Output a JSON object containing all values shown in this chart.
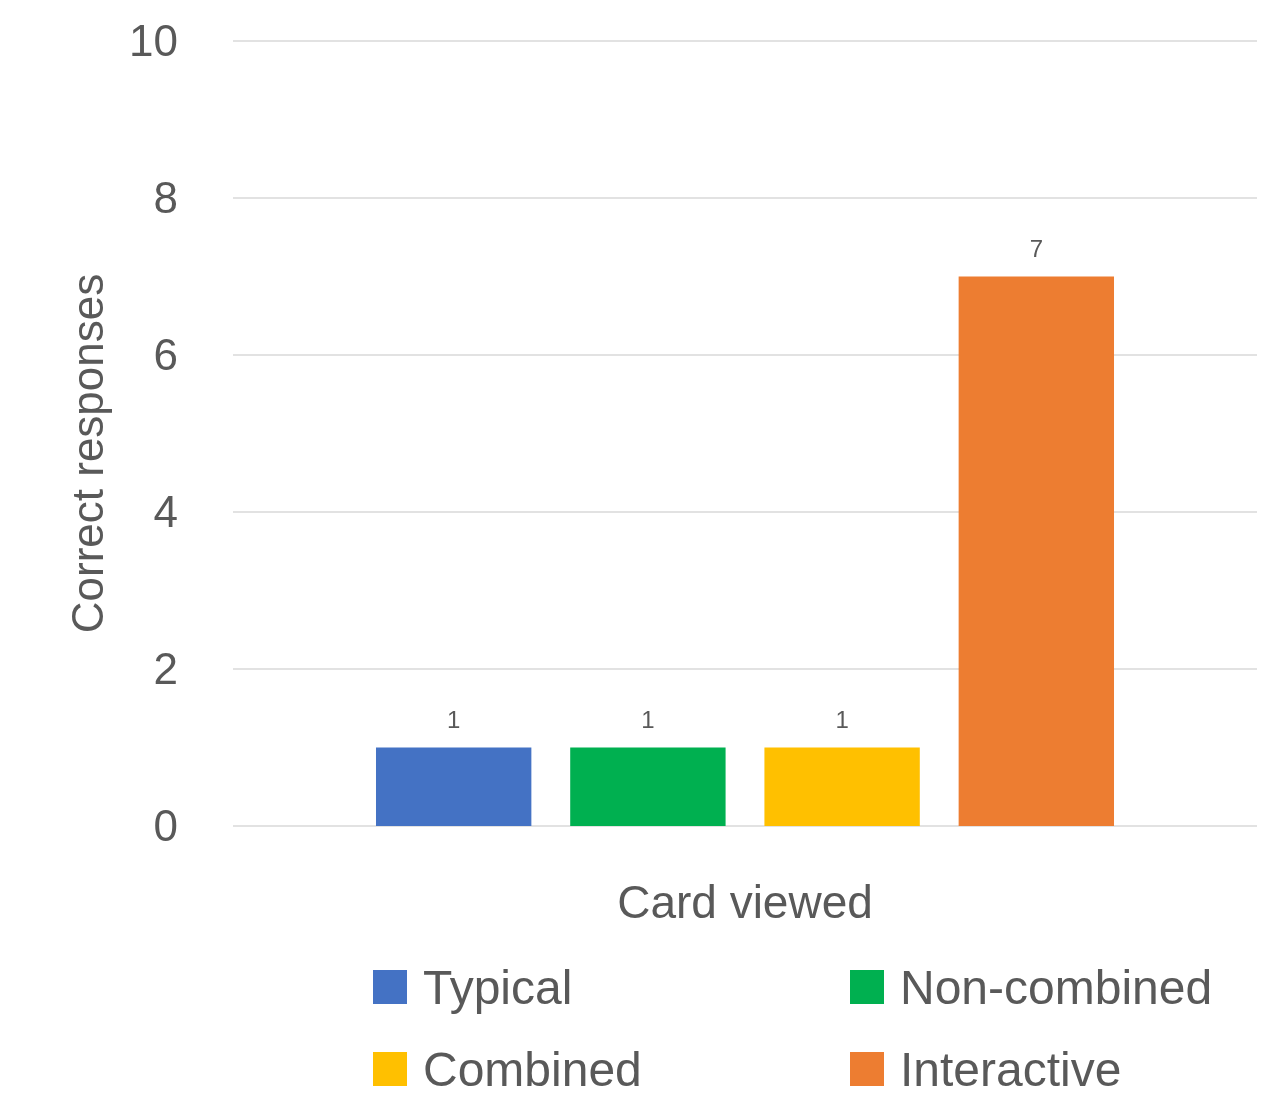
{
  "chart_data": {
    "type": "bar",
    "xlabel": "Card viewed",
    "ylabel": "Correct responses",
    "categories": [
      null
    ],
    "series": [
      {
        "name": "Typical",
        "color": "#4472c4",
        "values": [
          1
        ]
      },
      {
        "name": "Non-combined",
        "color": "#00b050",
        "values": [
          1
        ]
      },
      {
        "name": "Combined",
        "color": "#ffc000",
        "values": [
          1
        ]
      },
      {
        "name": "Interactive",
        "color": "#ed7d31",
        "values": [
          7
        ]
      }
    ],
    "ylim": [
      0,
      10
    ],
    "yticks": [
      0,
      2,
      4,
      6,
      8,
      10
    ],
    "grid": "y",
    "legend": "bottom",
    "data_labels": true
  }
}
